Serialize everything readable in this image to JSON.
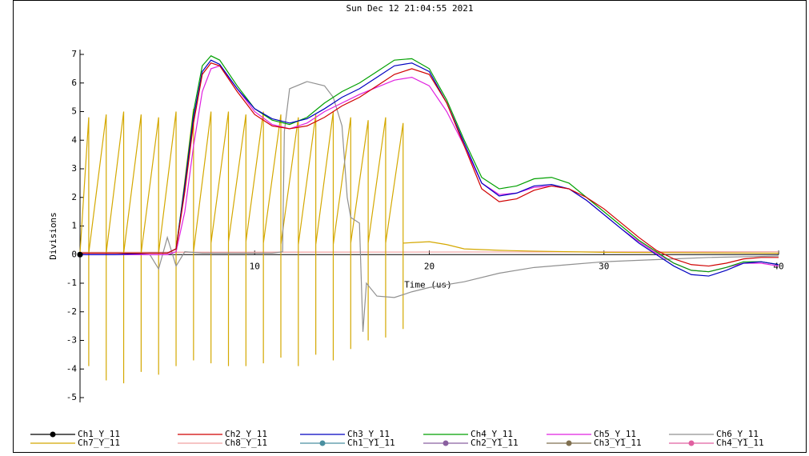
{
  "chart_data": {
    "type": "line",
    "title": "Sun Dec 12 21:04:55 2021",
    "x_label": "Time (us)",
    "y_label": "Divisions",
    "xlim": [
      0,
      40
    ],
    "xticks": [
      10,
      20,
      30,
      40
    ],
    "ylim": [
      -5,
      7
    ],
    "yticks": [
      -5,
      -4,
      -3,
      -2,
      -1,
      0,
      1,
      2,
      3,
      4,
      5,
      6,
      7
    ],
    "legend": "bottom",
    "series": [
      {
        "name": "Ch1_Y_11",
        "color": "#000000",
        "marker": true,
        "x": [
          0
        ],
        "values": [
          0
        ]
      },
      {
        "name": "Ch2_Y_11",
        "color": "#d00000",
        "x": [
          0,
          2,
          4,
          5,
          5.5,
          6,
          6.5,
          7,
          7.5,
          8,
          9,
          10,
          11,
          12,
          13,
          14,
          15,
          16,
          17,
          18,
          19,
          20,
          21,
          22,
          23,
          24,
          25,
          26,
          27,
          28,
          29,
          30,
          31,
          32,
          33,
          34,
          35,
          36,
          37,
          38,
          39,
          40
        ],
        "values": [
          0.05,
          0.05,
          0.05,
          0.05,
          0.2,
          2.2,
          4.6,
          6.3,
          6.7,
          6.6,
          5.7,
          4.9,
          4.5,
          4.4,
          4.5,
          4.8,
          5.2,
          5.5,
          5.9,
          6.3,
          6.5,
          6.3,
          5.3,
          3.8,
          2.3,
          1.85,
          1.95,
          2.25,
          2.4,
          2.3,
          2.0,
          1.6,
          1.1,
          0.6,
          0.15,
          -0.15,
          -0.35,
          -0.4,
          -0.3,
          -0.15,
          -0.1,
          -0.1
        ]
      },
      {
        "name": "Ch3_Y_11",
        "color": "#0000c0",
        "x": [
          0,
          2,
          4,
          5,
          5.5,
          6,
          6.5,
          7,
          7.5,
          8,
          9,
          10,
          11,
          12,
          13,
          14,
          15,
          16,
          17,
          18,
          19,
          20,
          21,
          22,
          23,
          24,
          25,
          26,
          27,
          28,
          29,
          30,
          31,
          32,
          33,
          34,
          35,
          36,
          37,
          38,
          39,
          40
        ],
        "values": [
          0,
          0,
          0.05,
          0.05,
          0.2,
          2.4,
          4.8,
          6.4,
          6.8,
          6.65,
          5.8,
          5.1,
          4.75,
          4.6,
          4.75,
          5.1,
          5.5,
          5.8,
          6.2,
          6.6,
          6.7,
          6.4,
          5.3,
          3.9,
          2.5,
          2.05,
          2.15,
          2.4,
          2.45,
          2.3,
          1.9,
          1.4,
          0.9,
          0.4,
          0.0,
          -0.4,
          -0.7,
          -0.75,
          -0.55,
          -0.3,
          -0.25,
          -0.35
        ]
      },
      {
        "name": "Ch4_Y_11",
        "color": "#00a000",
        "x": [
          0,
          2,
          4,
          5,
          5.5,
          6,
          6.5,
          7,
          7.5,
          8,
          9,
          10,
          11,
          12,
          13,
          14,
          15,
          16,
          17,
          18,
          19,
          20,
          21,
          22,
          23,
          24,
          25,
          26,
          27,
          28,
          29,
          30,
          31,
          32,
          33,
          34,
          35,
          36,
          37,
          38,
          39,
          40
        ],
        "values": [
          0.05,
          0.05,
          0.05,
          0.05,
          0.2,
          2.5,
          5.0,
          6.6,
          6.95,
          6.8,
          5.9,
          5.1,
          4.7,
          4.55,
          4.8,
          5.3,
          5.7,
          6.0,
          6.4,
          6.8,
          6.85,
          6.5,
          5.4,
          4.0,
          2.7,
          2.3,
          2.4,
          2.65,
          2.7,
          2.5,
          2.0,
          1.5,
          1.0,
          0.5,
          0.1,
          -0.3,
          -0.55,
          -0.6,
          -0.45,
          -0.25,
          -0.25,
          -0.35
        ]
      },
      {
        "name": "Ch5_Y_11",
        "color": "#e020e0",
        "x": [
          0,
          2,
          4,
          5,
          5.5,
          6,
          6.5,
          7,
          7.5,
          8,
          9,
          10,
          11,
          12,
          13,
          14,
          15,
          16,
          17,
          18,
          19,
          20,
          21,
          22,
          23,
          24,
          25,
          26,
          27,
          28,
          29,
          30,
          31,
          32,
          33,
          34,
          35,
          36,
          37,
          38,
          39,
          40
        ],
        "values": [
          0,
          0,
          0,
          0,
          0.1,
          1.5,
          3.8,
          5.7,
          6.5,
          6.6,
          5.8,
          5.0,
          4.55,
          4.4,
          4.6,
          5.0,
          5.3,
          5.6,
          5.85,
          6.1,
          6.2,
          5.9,
          5.0,
          3.8,
          2.5,
          2.1,
          2.15,
          2.35,
          2.4,
          2.3,
          1.9,
          1.4,
          0.9,
          0.45,
          0.05,
          -0.3,
          -0.55,
          -0.6,
          -0.45,
          -0.3,
          -0.3,
          -0.4
        ]
      },
      {
        "name": "Ch6_Y_11",
        "color": "#909090",
        "x": [
          0,
          4,
          4.5,
          5,
          5.5,
          6,
          7,
          9,
          11,
          11.6,
          11.7,
          12,
          13,
          14,
          14.5,
          15,
          15.3,
          15.5,
          16,
          16.2,
          16.4,
          17,
          18,
          19,
          20,
          22,
          24,
          26,
          28,
          30,
          32,
          34,
          36,
          40
        ],
        "values": [
          0,
          0,
          -0.5,
          0.6,
          -0.4,
          0.1,
          0.05,
          0.05,
          0.05,
          0.1,
          4.3,
          5.8,
          6.05,
          5.9,
          5.5,
          4.5,
          2.0,
          1.3,
          1.1,
          -2.7,
          -1.0,
          -1.45,
          -1.5,
          -1.3,
          -1.15,
          -0.95,
          -0.65,
          -0.45,
          -0.35,
          -0.25,
          -0.2,
          -0.15,
          -0.1,
          -0.05
        ]
      },
      {
        "name": "Ch7_Y_11",
        "color": "#d4a800",
        "x": [
          0,
          0.5,
          0.5,
          0.5,
          1.5,
          1.5,
          1.5,
          2.5,
          2.5,
          2.5,
          3.5,
          3.5,
          3.5,
          4.5,
          4.5,
          4.5,
          5.5,
          5.5,
          5.5,
          6.5,
          6.5,
          6.5,
          7.5,
          7.5,
          7.5,
          8.5,
          8.5,
          8.5,
          9.5,
          9.5,
          9.5,
          10.5,
          10.5,
          10.5,
          11.5,
          11.5,
          11.5,
          12.5,
          12.5,
          12.5,
          13.5,
          13.5,
          13.5,
          14.5,
          14.5,
          14.5,
          15.5,
          15.5,
          15.5,
          16.5,
          16.5,
          16.5,
          17.5,
          17.5,
          17.5,
          18.5,
          18.5,
          18.5,
          19,
          20,
          21,
          22,
          24,
          26,
          30,
          40
        ],
        "values": [
          0.05,
          4.8,
          -3.9,
          0.05,
          4.9,
          -4.4,
          0.05,
          5.0,
          -4.5,
          0.05,
          4.9,
          -4.1,
          0.05,
          4.8,
          -4.2,
          0.05,
          5.0,
          -3.9,
          0.05,
          5.1,
          -3.7,
          0.1,
          5.0,
          -3.8,
          0.4,
          5.0,
          -3.9,
          0.45,
          4.9,
          -3.9,
          0.45,
          5.0,
          -3.8,
          0.4,
          4.9,
          -3.6,
          0.35,
          4.8,
          -3.9,
          0.35,
          4.9,
          -3.5,
          0.35,
          5.0,
          -3.7,
          0.35,
          4.8,
          -3.3,
          0.4,
          4.7,
          -3.0,
          0.4,
          4.8,
          -2.9,
          0.4,
          4.6,
          -2.6,
          0.4,
          0.42,
          0.45,
          0.35,
          0.2,
          0.15,
          0.12,
          0.08,
          0.05
        ]
      },
      {
        "name": "Ch8_Y_11",
        "color": "#f0a0a0",
        "x": [
          0,
          40
        ],
        "values": [
          0.08,
          0.1
        ]
      },
      {
        "name": "Ch1_Y1_11",
        "color": "#4a8fa0",
        "marker": true,
        "x": [
          0
        ],
        "values": [
          0
        ]
      },
      {
        "name": "Ch2_Y1_11",
        "color": "#8a60a0",
        "marker": true,
        "x": [
          0
        ],
        "values": [
          0
        ]
      },
      {
        "name": "Ch3_Y1_11",
        "color": "#807050",
        "marker": true,
        "x": [
          0
        ],
        "values": [
          0
        ]
      },
      {
        "name": "Ch4_Y1_11",
        "color": "#e060a0",
        "marker": true,
        "x": [
          0
        ],
        "values": [
          0
        ]
      }
    ]
  }
}
